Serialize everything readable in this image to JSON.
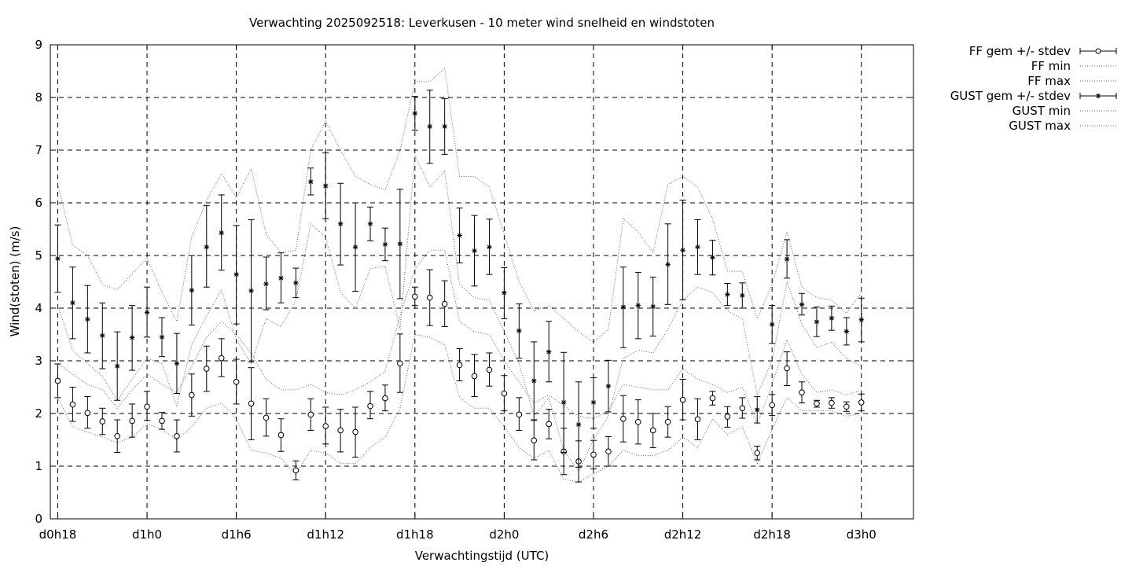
{
  "chart_data": {
    "type": "scatter",
    "title": "Verwachting 2025092518: Leverkusen - 10 meter wind snelheid en windstoten",
    "xlabel": "Verwachtingstijd (UTC)",
    "ylabel": "Wind(stoten) (m/s)",
    "ylim": [
      0,
      9
    ],
    "y_ticks": [
      0,
      1,
      2,
      3,
      4,
      5,
      6,
      7,
      8,
      9
    ],
    "x_range_hours": [
      -0.5,
      57.5
    ],
    "x_ticks": [
      {
        "hour": 0,
        "label": "d0h18"
      },
      {
        "hour": 6,
        "label": "d1h0"
      },
      {
        "hour": 12,
        "label": "d1h6"
      },
      {
        "hour": 18,
        "label": "d1h12"
      },
      {
        "hour": 24,
        "label": "d1h18"
      },
      {
        "hour": 30,
        "label": "d2h0"
      },
      {
        "hour": 36,
        "label": "d2h6"
      },
      {
        "hour": 42,
        "label": "d2h12"
      },
      {
        "hour": 48,
        "label": "d2h18"
      },
      {
        "hour": 54,
        "label": "d3h0"
      }
    ],
    "grid": true,
    "legend_position": "outside-right-top",
    "hours": [
      0,
      1,
      2,
      3,
      4,
      5,
      6,
      7,
      8,
      9,
      10,
      11,
      12,
      13,
      14,
      15,
      16,
      17,
      18,
      19,
      20,
      21,
      22,
      23,
      24,
      25,
      26,
      27,
      28,
      29,
      30,
      31,
      32,
      33,
      34,
      35,
      36,
      37,
      38,
      39,
      40,
      41,
      42,
      43,
      44,
      45,
      46,
      47,
      48,
      49,
      50,
      51,
      52,
      53,
      54
    ],
    "series": [
      {
        "name": "FF gem +/- stdev",
        "style": "errorbar-circle",
        "values": [
          2.62,
          2.17,
          2.01,
          1.85,
          1.57,
          1.86,
          2.13,
          1.86,
          1.57,
          2.35,
          2.85,
          3.05,
          2.6,
          2.19,
          1.92,
          1.59,
          0.92,
          1.98,
          1.76,
          1.68,
          1.65,
          2.14,
          2.29,
          2.95,
          4.22,
          4.2,
          4.08,
          2.92,
          2.71,
          2.83,
          2.38,
          1.98,
          1.49,
          1.8,
          1.28,
          1.09,
          1.22,
          1.28,
          1.9,
          1.84,
          1.68,
          1.84,
          2.26,
          1.89,
          2.29,
          1.94,
          2.1,
          1.25,
          2.16,
          2.86,
          2.4,
          2.19,
          2.2,
          2.13,
          2.21
        ],
        "err_low": [
          2.3,
          1.85,
          1.72,
          1.6,
          1.26,
          1.55,
          1.87,
          1.7,
          1.27,
          1.95,
          2.42,
          2.7,
          2.18,
          1.5,
          1.57,
          1.28,
          0.74,
          1.68,
          1.42,
          1.27,
          1.17,
          1.9,
          2.05,
          2.4,
          4.05,
          3.67,
          3.65,
          2.62,
          2.32,
          2.52,
          2.05,
          1.68,
          1.12,
          1.52,
          0.84,
          0.7,
          0.95,
          1.0,
          1.46,
          1.42,
          1.35,
          1.55,
          1.88,
          1.5,
          2.16,
          1.74,
          1.91,
          1.12,
          1.96,
          2.53,
          2.2,
          2.12,
          2.1,
          2.04,
          2.05
        ],
        "err_high": [
          2.94,
          2.5,
          2.32,
          2.1,
          1.88,
          2.18,
          2.42,
          2.02,
          1.88,
          2.75,
          3.28,
          3.42,
          3.03,
          2.87,
          2.28,
          1.9,
          1.1,
          2.28,
          2.12,
          2.08,
          2.12,
          2.42,
          2.54,
          3.51,
          4.4,
          4.73,
          4.52,
          3.23,
          3.12,
          3.15,
          2.72,
          2.3,
          1.87,
          2.08,
          1.72,
          1.48,
          1.49,
          1.56,
          2.34,
          2.26,
          2.0,
          2.13,
          2.65,
          2.28,
          2.42,
          2.13,
          2.3,
          1.38,
          2.36,
          3.17,
          2.6,
          2.25,
          2.3,
          2.22,
          2.37
        ]
      },
      {
        "name": "FF min",
        "style": "dotted",
        "values": [
          2.3,
          1.75,
          1.65,
          1.55,
          1.45,
          1.55,
          1.8,
          1.7,
          1.5,
          1.75,
          2.1,
          2.2,
          1.9,
          1.3,
          1.25,
          1.15,
          0.85,
          1.3,
          1.25,
          1.05,
          1.05,
          1.35,
          1.55,
          2.1,
          3.5,
          3.45,
          3.3,
          2.3,
          2.1,
          2.1,
          1.75,
          1.35,
          1.15,
          1.3,
          0.75,
          0.7,
          0.85,
          1.0,
          1.3,
          1.2,
          1.2,
          1.3,
          1.55,
          1.35,
          1.9,
          1.6,
          1.75,
          1.05,
          1.7,
          2.3,
          2.05,
          2.05,
          2.05,
          1.95,
          2.0
        ]
      },
      {
        "name": "FF max",
        "style": "dotted",
        "values": [
          2.95,
          2.75,
          2.55,
          2.45,
          2.1,
          2.45,
          2.75,
          2.55,
          2.4,
          2.9,
          3.45,
          3.75,
          3.5,
          3.15,
          2.65,
          2.45,
          2.45,
          2.55,
          2.4,
          2.35,
          2.45,
          2.6,
          2.8,
          3.85,
          4.75,
          5.1,
          5.1,
          3.75,
          3.55,
          3.5,
          3.0,
          2.6,
          2.2,
          2.35,
          2.15,
          1.95,
          1.9,
          2.05,
          2.55,
          2.5,
          2.45,
          2.45,
          2.85,
          2.65,
          2.55,
          2.4,
          2.5,
          1.8,
          2.55,
          3.4,
          2.75,
          2.4,
          2.45,
          2.35,
          2.45
        ]
      },
      {
        "name": "GUST gem +/- stdev",
        "style": "errorbar-star",
        "values": [
          4.94,
          4.1,
          3.79,
          3.48,
          2.9,
          3.44,
          3.92,
          3.45,
          2.95,
          4.34,
          5.16,
          5.43,
          4.64,
          4.33,
          4.46,
          4.57,
          4.48,
          6.4,
          6.32,
          5.6,
          5.16,
          5.6,
          5.21,
          5.22,
          7.7,
          7.45,
          7.45,
          5.38,
          5.09,
          5.16,
          4.29,
          3.57,
          2.62,
          3.17,
          2.21,
          1.79,
          2.21,
          2.52,
          4.02,
          4.05,
          4.03,
          4.83,
          5.1,
          5.16,
          4.96,
          4.26,
          4.24,
          2.07,
          3.69,
          4.93,
          4.07,
          3.74,
          3.81,
          3.56,
          3.78
        ],
        "err_low": [
          4.3,
          3.42,
          3.15,
          2.85,
          2.25,
          2.82,
          3.45,
          3.08,
          2.38,
          3.68,
          4.4,
          4.72,
          3.7,
          2.98,
          3.97,
          4.1,
          4.2,
          6.15,
          5.7,
          4.82,
          4.32,
          5.28,
          4.9,
          4.18,
          7.38,
          6.75,
          6.92,
          4.86,
          4.42,
          4.64,
          3.8,
          3.05,
          1.88,
          2.6,
          1.26,
          0.98,
          1.72,
          2.03,
          3.25,
          3.42,
          3.47,
          4.07,
          4.16,
          4.64,
          4.63,
          4.05,
          4.0,
          1.82,
          3.33,
          4.57,
          3.87,
          3.46,
          3.58,
          3.3,
          3.36
        ],
        "err_high": [
          5.58,
          4.78,
          4.43,
          4.1,
          3.55,
          4.05,
          4.4,
          3.82,
          3.52,
          5.0,
          5.95,
          6.15,
          5.57,
          5.68,
          4.97,
          5.05,
          4.76,
          6.66,
          6.95,
          6.37,
          6.0,
          5.92,
          5.52,
          6.26,
          8.02,
          8.14,
          7.98,
          5.9,
          5.76,
          5.69,
          4.77,
          4.08,
          3.36,
          3.75,
          3.16,
          2.6,
          2.68,
          3.01,
          4.78,
          4.68,
          4.59,
          5.6,
          6.05,
          5.68,
          5.29,
          4.47,
          4.48,
          2.32,
          4.05,
          5.3,
          4.28,
          4.02,
          4.04,
          3.82,
          4.19
        ]
      },
      {
        "name": "GUST min",
        "style": "dotted",
        "values": [
          4.05,
          3.2,
          2.95,
          2.7,
          2.25,
          2.65,
          3.05,
          2.95,
          2.15,
          3.3,
          3.85,
          4.35,
          3.4,
          2.95,
          3.8,
          3.65,
          4.15,
          5.6,
          5.35,
          4.3,
          4.0,
          4.75,
          4.8,
          3.6,
          6.9,
          6.3,
          6.6,
          4.45,
          4.2,
          4.15,
          3.55,
          2.95,
          1.95,
          2.3,
          1.3,
          0.9,
          1.5,
          1.95,
          3.05,
          3.2,
          3.15,
          3.6,
          4.15,
          4.4,
          4.3,
          3.95,
          3.8,
          2.35,
          3.0,
          4.5,
          3.7,
          3.25,
          3.35,
          3.05,
          2.9
        ]
      },
      {
        "name": "GUST max",
        "style": "dotted",
        "values": [
          6.35,
          5.2,
          5.0,
          4.45,
          4.35,
          4.65,
          4.95,
          4.3,
          3.75,
          5.35,
          6.05,
          6.55,
          6.1,
          6.65,
          5.4,
          5.05,
          5.1,
          7.0,
          7.55,
          7.0,
          6.5,
          6.35,
          6.25,
          7.0,
          8.3,
          8.3,
          8.55,
          6.5,
          6.5,
          6.3,
          5.4,
          4.5,
          3.95,
          4.05,
          3.8,
          3.55,
          3.35,
          3.6,
          5.7,
          5.45,
          5.05,
          6.35,
          6.5,
          6.3,
          5.7,
          4.7,
          4.7,
          3.8,
          4.45,
          5.45,
          4.4,
          4.2,
          4.15,
          3.9,
          4.3
        ]
      }
    ]
  }
}
